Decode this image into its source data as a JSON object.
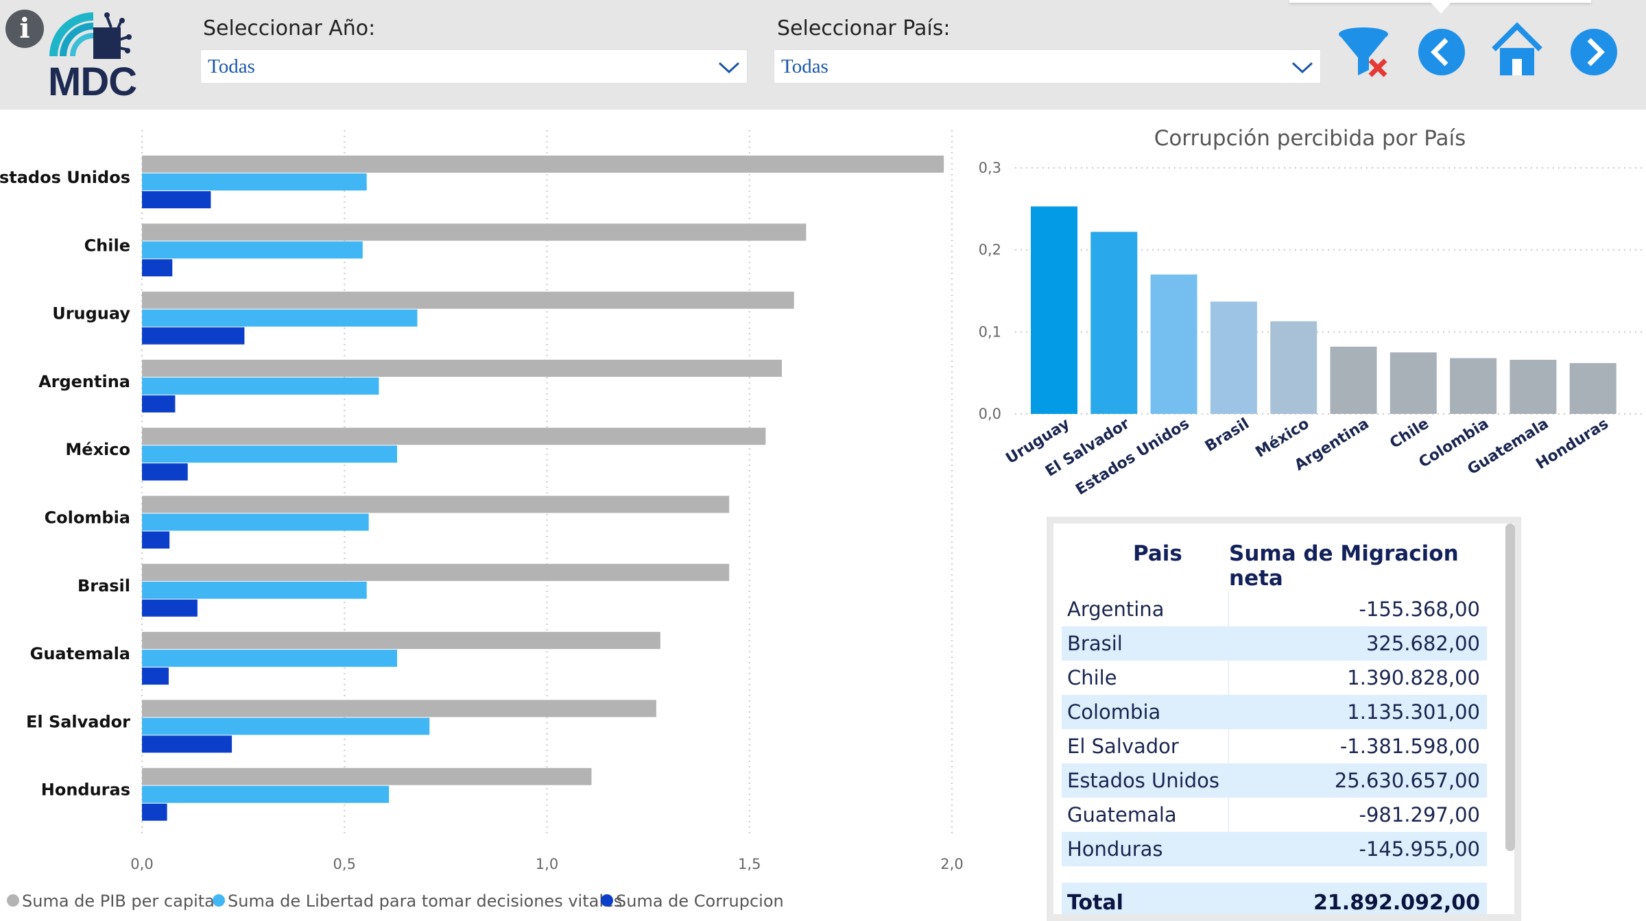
{
  "header": {
    "info_icon": "info-icon",
    "logo_text": "MDC",
    "year_slicer": {
      "label": "Seleccionar Año:",
      "value": "Todas"
    },
    "country_slicer": {
      "label": "Seleccionar País:",
      "value": "Todas"
    },
    "nav_icons": [
      "clear-filter-icon",
      "back-icon",
      "home-icon",
      "forward-icon"
    ]
  },
  "colors": {
    "gray": "#b3b3b3",
    "light_blue": "#41b6f5",
    "dark_blue": "#0b3fc9",
    "accent": "#1e90e8"
  },
  "chart_data": [
    {
      "type": "bar",
      "orientation": "horizontal",
      "title": "",
      "categories": [
        "Estados Unidos",
        "Chile",
        "Uruguay",
        "Argentina",
        "México",
        "Colombia",
        "Brasil",
        "Guatemala",
        "El Salvador",
        "Honduras"
      ],
      "series": [
        {
          "name": "Suma de PIB per capita",
          "color": "#b3b3b3",
          "values": [
            1.98,
            1.64,
            1.61,
            1.58,
            1.54,
            1.45,
            1.45,
            1.28,
            1.27,
            1.11
          ]
        },
        {
          "name": "Suma de Libertad para tomar decisiones vitales",
          "color": "#41b6f5",
          "values": [
            0.555,
            0.545,
            0.68,
            0.585,
            0.63,
            0.56,
            0.555,
            0.63,
            0.71,
            0.61
          ]
        },
        {
          "name": "Suma de Corrupcion",
          "color": "#0b3fc9",
          "values": [
            0.17,
            0.075,
            0.253,
            0.082,
            0.113,
            0.068,
            0.137,
            0.066,
            0.222,
            0.062
          ]
        }
      ],
      "xlim": [
        0,
        2.0
      ],
      "xticks": [
        "0,0",
        "0,5",
        "1,0",
        "1,5",
        "2,0"
      ],
      "grid": true,
      "legend_position": "bottom"
    },
    {
      "type": "bar",
      "title": "Corrupción percibida por País",
      "categories": [
        "Uruguay",
        "El Salvador",
        "Estados Unidos",
        "Brasil",
        "México",
        "Argentina",
        "Chile",
        "Colombia",
        "Guatemala",
        "Honduras"
      ],
      "values": [
        0.253,
        0.222,
        0.17,
        0.137,
        0.113,
        0.082,
        0.075,
        0.068,
        0.066,
        0.062
      ],
      "colors": [
        "#039be5",
        "#29a8ec",
        "#74bff0",
        "#9dc4e4",
        "#a9c1d6",
        "#a8b0b8",
        "#a8b0b8",
        "#a8b0b8",
        "#a8b0b8",
        "#a8b0b8"
      ],
      "ylim": [
        0,
        0.3
      ],
      "yticks": [
        "0,0",
        "0,1",
        "0,2",
        "0,3"
      ],
      "grid": true
    }
  ],
  "table": {
    "headers": [
      "Pais",
      "Suma de Migracion neta"
    ],
    "rows": [
      [
        "Argentina",
        "-155.368,00"
      ],
      [
        "Brasil",
        "325.682,00"
      ],
      [
        "Chile",
        "1.390.828,00"
      ],
      [
        "Colombia",
        "1.135.301,00"
      ],
      [
        "El Salvador",
        "-1.381.598,00"
      ],
      [
        "Estados Unidos",
        "25.630.657,00"
      ],
      [
        "Guatemala",
        "-981.297,00"
      ],
      [
        "Honduras",
        "-145.955,00"
      ]
    ],
    "total": [
      "Total",
      "21.892.092,00"
    ]
  }
}
